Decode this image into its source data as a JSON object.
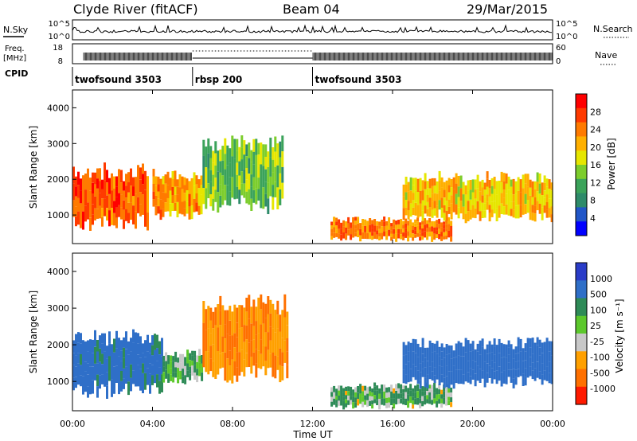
{
  "header": {
    "station": "Clyde River (fitACF)",
    "beam": "Beam 04",
    "date": "29/Mar/2015"
  },
  "noise_panel": {
    "left_label": "N.Sky",
    "left_ticks": [
      "10^5",
      "10^0"
    ],
    "right_label": "N.Search",
    "right_ticks": [
      "10^5",
      "10^0"
    ]
  },
  "freq_panel": {
    "left_label_line1": "Freq.",
    "left_label_line2": "[MHz]",
    "left_ticks": [
      "18",
      "8"
    ],
    "right_label": "Nave",
    "right_ticks": [
      "60",
      "0"
    ]
  },
  "cpid": {
    "label": "CPID",
    "segments": [
      {
        "name": "twofsound 3503",
        "start": 0,
        "end": 6
      },
      {
        "name": "rbsp 200",
        "start": 6,
        "end": 12
      },
      {
        "name": "twofsound 3503",
        "start": 12,
        "end": 24
      }
    ]
  },
  "power_panel": {
    "ylabel": "Slant Range [km]",
    "cbar_label": "Power [dB]",
    "cbar_ticks": [
      "28",
      "24",
      "20",
      "16",
      "12",
      "8",
      "4"
    ],
    "cbar_colors": [
      "#ff0000",
      "#ff3a00",
      "#ff7a00",
      "#ffb000",
      "#e6e600",
      "#7ccd2c",
      "#3ba35a",
      "#2e8b6a",
      "#2156c8",
      "#0000ff"
    ]
  },
  "velocity_panel": {
    "ylabel": "Slant Range [km]",
    "cbar_label": "Velocity [m s⁻¹]",
    "cbar_ticks": [
      "1000",
      "500",
      "100",
      "25",
      "-25",
      "-100",
      "-500",
      "-1000"
    ],
    "cbar_colors": [
      "#2a3cc8",
      "#2f6fc8",
      "#2e8b57",
      "#5cc82c",
      "#c8c8c8",
      "#ffa000",
      "#ff7000",
      "#ff1a00"
    ]
  },
  "xaxis": {
    "ticks": [
      "00:00",
      "04:00",
      "08:00",
      "12:00",
      "16:00",
      "20:00",
      "00:00"
    ],
    "label": "Time UT"
  },
  "yaxis_ticks": [
    "4000",
    "3000",
    "2000",
    "1000"
  ],
  "chart_data": {
    "type": "heatmap",
    "x": [
      0,
      4,
      8,
      12,
      16,
      20,
      24
    ],
    "xlim": [
      0,
      24
    ],
    "ylim": [
      200,
      4500
    ],
    "panels": [
      {
        "name": "Power",
        "echo_regions": [
          {
            "t0": 0.0,
            "t1": 3.8,
            "r0": 700,
            "r1": 2300,
            "level_db": 26
          },
          {
            "t0": 4.0,
            "t1": 6.5,
            "r0": 1000,
            "r1": 2200,
            "level_db": 22
          },
          {
            "t0": 6.5,
            "t1": 10.5,
            "r0": 1200,
            "r1": 3100,
            "level_db": 14
          },
          {
            "t0": 12.9,
            "t1": 19.0,
            "r0": 300,
            "r1": 900,
            "level_db": 24
          },
          {
            "t0": 16.5,
            "t1": 24.0,
            "r0": 900,
            "r1": 2100,
            "level_db": 20
          }
        ]
      },
      {
        "name": "Velocity",
        "echo_regions": [
          {
            "t0": 0.0,
            "t1": 4.5,
            "r0": 700,
            "r1": 2300,
            "velocity": 400
          },
          {
            "t0": 4.5,
            "t1": 6.5,
            "r0": 1000,
            "r1": 1800,
            "velocity": 100
          },
          {
            "t0": 6.5,
            "t1": 10.8,
            "r0": 1100,
            "r1": 3200,
            "velocity": -300
          },
          {
            "t0": 12.9,
            "t1": 19.0,
            "r0": 300,
            "r1": 900,
            "velocity": 80
          },
          {
            "t0": 16.5,
            "t1": 24.0,
            "r0": 900,
            "r1": 2100,
            "velocity": 500
          }
        ]
      }
    ]
  }
}
